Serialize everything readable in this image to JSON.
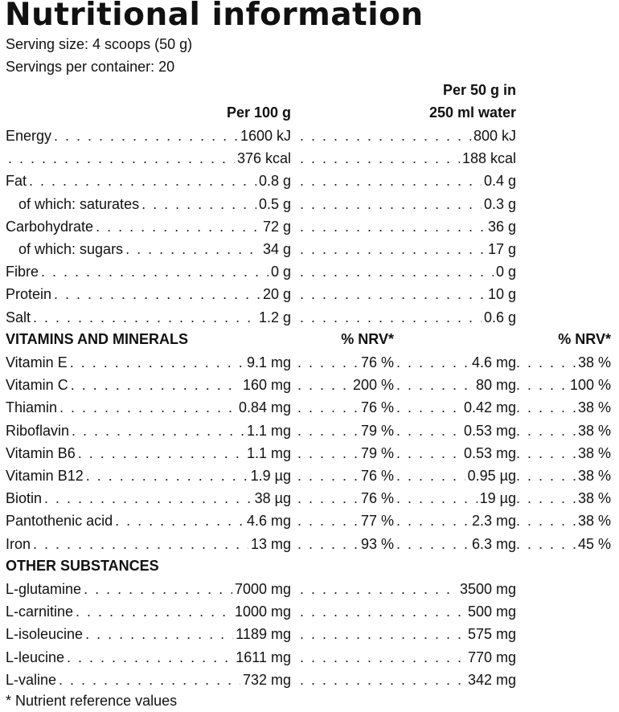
{
  "title": "Nutritional information",
  "serving_size": "Serving size: 4 scoops (50 g)",
  "servings_per_container": "Servings per container: 20",
  "headers": {
    "per100": "Per 100 g",
    "per50_line1": "Per 50 g in",
    "per50_line2": "250 ml water"
  },
  "nutrients": [
    {
      "label": "Energy",
      "per100": "1600 kJ",
      "per50": "800 kJ",
      "indent": false
    },
    {
      "label": "",
      "per100": "376 kcal",
      "per50": "188 kcal",
      "indent": false
    },
    {
      "label": "Fat",
      "per100": "0.8 g",
      "per50": "0.4 g",
      "indent": false
    },
    {
      "label": "of which: saturates",
      "per100": "0.5 g",
      "per50": "0.3 g",
      "indent": true
    },
    {
      "label": "Carbohydrate",
      "per100": "72 g",
      "per50": "36 g",
      "indent": false
    },
    {
      "label": "of which: sugars",
      "per100": "34 g",
      "per50": "17 g",
      "indent": true
    },
    {
      "label": "Fibre",
      "per100": "0 g",
      "per50": "0 g",
      "indent": false
    },
    {
      "label": "Protein",
      "per100": "20 g",
      "per50": "10 g",
      "indent": false
    },
    {
      "label": "Salt",
      "per100": "1.2 g",
      "per50": "0.6 g",
      "indent": false
    }
  ],
  "vitamins_heading": "VITAMINS AND MINERALS",
  "nrv_heading": "% NRV*",
  "vitamins": [
    {
      "label": "Vitamin E",
      "per100": "9.1 mg",
      "nrv100": "76 %",
      "per50": "4.6 mg",
      "nrv50": "38 %"
    },
    {
      "label": "Vitamin C",
      "per100": "160 mg",
      "nrv100": "200 %",
      "per50": "80 mg",
      "nrv50": "100 %"
    },
    {
      "label": "Thiamin",
      "per100": "0.84 mg",
      "nrv100": "76 %",
      "per50": "0.42 mg",
      "nrv50": "38 %"
    },
    {
      "label": "Riboflavin",
      "per100": "1.1 mg",
      "nrv100": "79 %",
      "per50": "0.53 mg",
      "nrv50": "38 %"
    },
    {
      "label": "Vitamin B6",
      "per100": "1.1 mg",
      "nrv100": "79 %",
      "per50": "0.53 mg",
      "nrv50": "38 %"
    },
    {
      "label": "Vitamin B12",
      "per100": "1.9 µg",
      "nrv100": "76 %",
      "per50": "0.95 µg",
      "nrv50": "38 %"
    },
    {
      "label": "Biotin",
      "per100": "38 µg",
      "nrv100": "76 %",
      "per50": "19 µg",
      "nrv50": "38 %"
    },
    {
      "label": "Pantothenic acid",
      "per100": "4.6 mg",
      "nrv100": "77 %",
      "per50": "2.3 mg",
      "nrv50": "38 %"
    },
    {
      "label": "Iron",
      "per100": "13 mg",
      "nrv100": "93 %",
      "per50": "6.3 mg",
      "nrv50": "45 %"
    }
  ],
  "other_heading": "OTHER SUBSTANCES",
  "other": [
    {
      "label": "L-glutamine",
      "per100": "7000 mg",
      "per50": "3500 mg"
    },
    {
      "label": "L-carnitine",
      "per100": "1000 mg",
      "per50": "500 mg"
    },
    {
      "label": "L-isoleucine",
      "per100": "1189 mg",
      "per50": "575 mg"
    },
    {
      "label": "L-leucine",
      "per100": "1611 mg",
      "per50": "770 mg"
    },
    {
      "label": "L-valine",
      "per100": "732 mg",
      "per50": "342 mg"
    }
  ],
  "footnote": "* Nutrient reference values"
}
